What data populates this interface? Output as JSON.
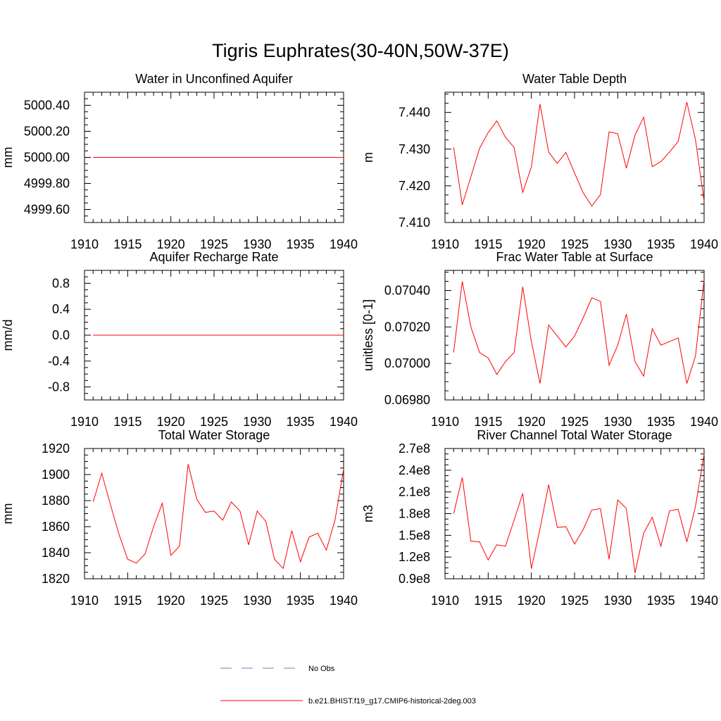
{
  "title": "Tigris Euphrates(30-40N,50W-37E)",
  "colors": {
    "model": "#ff0000",
    "obs": "#7b7bb8",
    "axis": "#000000"
  },
  "legend": {
    "obs_label": "No Obs",
    "model_label": "b.e21.BHIST.f19_g17.CMIP6-historical-2deg.003"
  },
  "chart_data": [
    {
      "type": "line",
      "title": "Water in Unconfined Aquifer",
      "ylabel": "mm",
      "xlim": [
        1910,
        1940
      ],
      "ylim": [
        4999.5,
        5000.5
      ],
      "xticks": [
        1910,
        1915,
        1920,
        1925,
        1930,
        1935,
        1940
      ],
      "yticks": [
        4999.6,
        4999.8,
        5000.0,
        5000.2,
        5000.4
      ],
      "ytick_labels": [
        "4999.60",
        "4999.80",
        "5000.00",
        "5000.20",
        "5000.40"
      ],
      "x": [
        1911,
        1940
      ],
      "y": [
        5000.0,
        5000.0
      ]
    },
    {
      "type": "line",
      "title": "Water Table Depth",
      "ylabel": "m",
      "xlim": [
        1910,
        1940
      ],
      "ylim": [
        7.41,
        7.4455
      ],
      "xticks": [
        1910,
        1915,
        1920,
        1925,
        1930,
        1935,
        1940
      ],
      "yticks": [
        7.41,
        7.42,
        7.43,
        7.44
      ],
      "ytick_labels": [
        "7.410",
        "7.420",
        "7.430",
        "7.440"
      ],
      "x": [
        1911,
        1912,
        1913,
        1914,
        1915,
        1916,
        1917,
        1918,
        1919,
        1920,
        1921,
        1922,
        1923,
        1924,
        1925,
        1926,
        1927,
        1928,
        1929,
        1930,
        1931,
        1932,
        1933,
        1934,
        1935,
        1936,
        1937,
        1938,
        1939,
        1940
      ],
      "y": [
        7.4305,
        7.4148,
        7.4225,
        7.4302,
        7.4345,
        7.4377,
        7.4332,
        7.4305,
        7.4182,
        7.4251,
        7.4423,
        7.4292,
        7.4261,
        7.4291,
        7.4235,
        7.4181,
        7.4145,
        7.4176,
        7.4347,
        7.4342,
        7.4248,
        7.4338,
        7.4387,
        7.4252,
        7.4266,
        7.4292,
        7.4321,
        7.4428,
        7.4326,
        7.4158
      ]
    },
    {
      "type": "line",
      "title": "Aquifer Recharge Rate",
      "ylabel": "mm/d",
      "xlim": [
        1910,
        1940
      ],
      "ylim": [
        -1.0,
        1.0
      ],
      "xticks": [
        1910,
        1915,
        1920,
        1925,
        1930,
        1935,
        1940
      ],
      "yticks": [
        -0.8,
        -0.4,
        0.0,
        0.4,
        0.8
      ],
      "ytick_labels": [
        "-0.8",
        "-0.4",
        "0.0",
        "0.4",
        "0.8"
      ],
      "x": [
        1911,
        1940
      ],
      "y": [
        0.0,
        0.0
      ]
    },
    {
      "type": "line",
      "title": "Frac Water Table at Surface",
      "ylabel": "unitless [0-1]",
      "xlim": [
        1910,
        1940
      ],
      "ylim": [
        0.0698,
        0.07051
      ],
      "xticks": [
        1910,
        1915,
        1920,
        1925,
        1930,
        1935,
        1940
      ],
      "yticks": [
        0.0698,
        0.07,
        0.0702,
        0.0704
      ],
      "ytick_labels": [
        "0.06980",
        "0.07000",
        "0.07020",
        "0.07040"
      ],
      "x": [
        1911,
        1912,
        1913,
        1914,
        1915,
        1916,
        1917,
        1918,
        1919,
        1920,
        1921,
        1922,
        1923,
        1924,
        1925,
        1926,
        1927,
        1928,
        1929,
        1930,
        1931,
        1932,
        1933,
        1934,
        1935,
        1936,
        1937,
        1938,
        1939,
        1940
      ],
      "y": [
        0.07006,
        0.07045,
        0.0702,
        0.07006,
        0.07003,
        0.06994,
        0.07001,
        0.07006,
        0.07042,
        0.07012,
        0.06989,
        0.07021,
        0.07015,
        0.07009,
        0.07015,
        0.07025,
        0.07036,
        0.07034,
        0.06999,
        0.0701,
        0.07027,
        0.07001,
        0.06993,
        0.07019,
        0.0701,
        0.07012,
        0.07014,
        0.06989,
        0.07004,
        0.07046
      ]
    },
    {
      "type": "line",
      "title": "Total Water Storage",
      "ylabel": "mm",
      "xlim": [
        1910,
        1940
      ],
      "ylim": [
        1820,
        1920
      ],
      "xticks": [
        1910,
        1915,
        1920,
        1925,
        1930,
        1935,
        1940
      ],
      "yticks": [
        1820,
        1840,
        1860,
        1880,
        1900,
        1920
      ],
      "ytick_labels": [
        "1820",
        "1840",
        "1860",
        "1880",
        "1900",
        "1920"
      ],
      "x": [
        1911,
        1912,
        1913,
        1914,
        1915,
        1916,
        1917,
        1918,
        1919,
        1920,
        1921,
        1922,
        1923,
        1924,
        1925,
        1926,
        1927,
        1928,
        1929,
        1930,
        1931,
        1932,
        1933,
        1934,
        1935,
        1936,
        1937,
        1938,
        1939,
        1940
      ],
      "y": [
        1879,
        1901,
        1877,
        1854,
        1835,
        1832,
        1839,
        1860,
        1878,
        1838,
        1845,
        1908,
        1881,
        1871,
        1872,
        1865,
        1879,
        1872,
        1846,
        1872,
        1864,
        1835,
        1828,
        1857,
        1833,
        1852,
        1855,
        1842,
        1865,
        1904
      ]
    },
    {
      "type": "line",
      "title": "River Channel Total Water Storage",
      "ylabel": "m3",
      "xlim": [
        1910,
        1940
      ],
      "ylim": [
        90000000.0,
        270000000.0
      ],
      "xticks": [
        1910,
        1915,
        1920,
        1925,
        1930,
        1935,
        1940
      ],
      "yticks": [
        90000000.0,
        120000000.0,
        150000000.0,
        180000000.0,
        210000000.0,
        240000000.0,
        270000000.0
      ],
      "ytick_labels": [
        "0.9e8",
        "1.2e8",
        "1.5e8",
        "1.8e8",
        "2.1e8",
        "2.4e8",
        "2.7e8"
      ],
      "x": [
        1911,
        1912,
        1913,
        1914,
        1915,
        1916,
        1917,
        1918,
        1919,
        1920,
        1921,
        1922,
        1923,
        1924,
        1925,
        1926,
        1927,
        1928,
        1929,
        1930,
        1931,
        1932,
        1933,
        1934,
        1935,
        1936,
        1937,
        1938,
        1939,
        1940
      ],
      "y": [
        180000000.0,
        230000000.0,
        142000000.0,
        141000000.0,
        116000000.0,
        137000000.0,
        135000000.0,
        171000000.0,
        208000000.0,
        104000000.0,
        159000000.0,
        220000000.0,
        161000000.0,
        162000000.0,
        138000000.0,
        158000000.0,
        185000000.0,
        187000000.0,
        117000000.0,
        199000000.0,
        187000000.0,
        98000000.0,
        153000000.0,
        175000000.0,
        135000000.0,
        184000000.0,
        186000000.0,
        141000000.0,
        190000000.0,
        262000000.0
      ]
    }
  ]
}
